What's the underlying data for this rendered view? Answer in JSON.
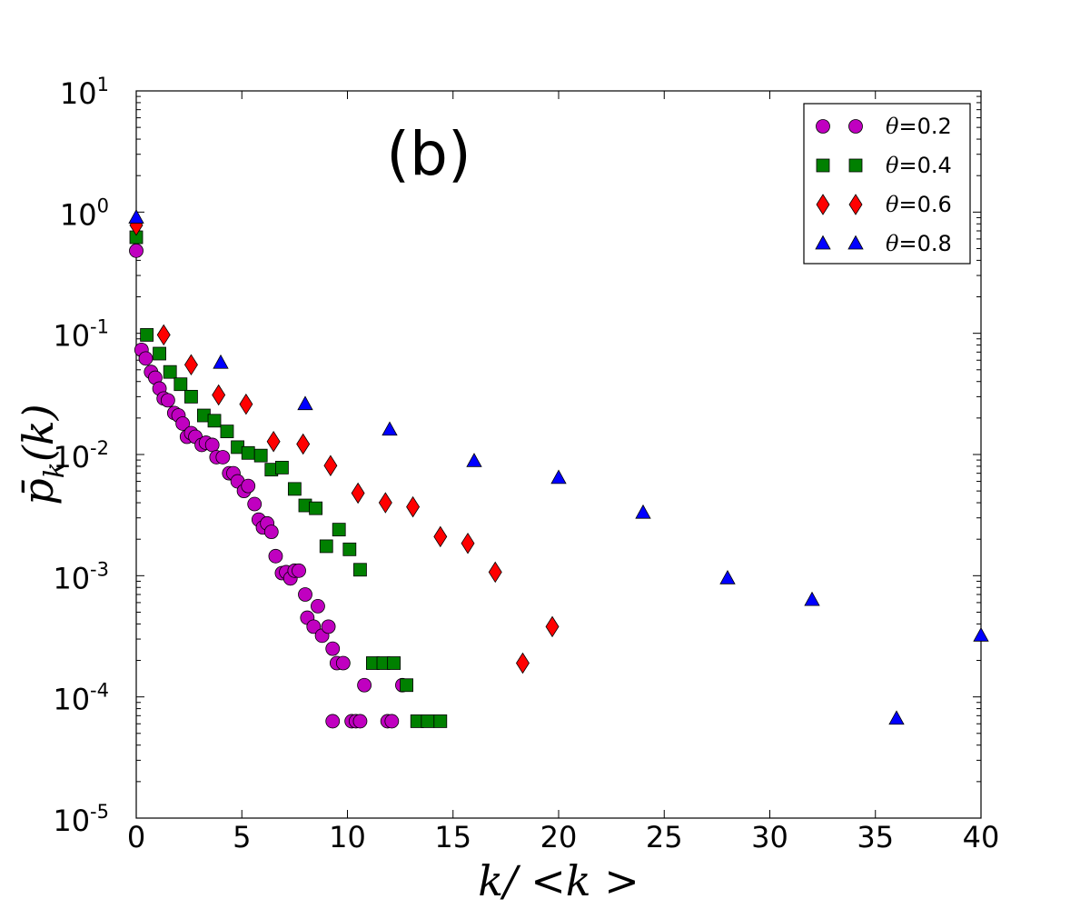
{
  "chart_data": {
    "type": "scatter",
    "title": "",
    "panel_label": "(b)",
    "xlabel": "k/ <k >",
    "ylabel": "p̄k(k)",
    "ylabel_parts": {
      "base": "p̄",
      "subscript": "k",
      "arg": "(k)"
    },
    "xlim": [
      0,
      40
    ],
    "ylim_log10": [
      -5,
      1
    ],
    "yscale": "log",
    "grid": false,
    "legend_position": "top-right",
    "x_ticks": [
      {
        "value": 0,
        "label": "0"
      },
      {
        "value": 5,
        "label": "5"
      },
      {
        "value": 10,
        "label": "10"
      },
      {
        "value": 15,
        "label": "15"
      },
      {
        "value": 20,
        "label": "20"
      },
      {
        "value": 25,
        "label": "25"
      },
      {
        "value": 30,
        "label": "30"
      },
      {
        "value": 35,
        "label": "35"
      },
      {
        "value": 40,
        "label": "40"
      }
    ],
    "y_ticks": [
      {
        "exp": 1,
        "base": "10",
        "sup": "1"
      },
      {
        "exp": 0,
        "base": "10",
        "sup": "0"
      },
      {
        "exp": -1,
        "base": "10",
        "sup": "-1"
      },
      {
        "exp": -2,
        "base": "10",
        "sup": "-2"
      },
      {
        "exp": -3,
        "base": "10",
        "sup": "-3"
      },
      {
        "exp": -4,
        "base": "10",
        "sup": "-4"
      },
      {
        "exp": -5,
        "base": "10",
        "sup": "-5"
      }
    ],
    "series": [
      {
        "name": "θ=0.2",
        "symbol": "θ",
        "value_text": "=0.2",
        "marker": "circle",
        "color": "#c000c0",
        "points": [
          [
            0,
            0.48
          ],
          [
            0.25,
            0.073
          ],
          [
            0.45,
            0.062
          ],
          [
            0.7,
            0.048
          ],
          [
            0.9,
            0.043
          ],
          [
            1.1,
            0.035
          ],
          [
            1.3,
            0.029
          ],
          [
            1.5,
            0.028
          ],
          [
            1.8,
            0.022
          ],
          [
            2.0,
            0.021
          ],
          [
            2.2,
            0.018
          ],
          [
            2.4,
            0.014
          ],
          [
            2.6,
            0.015
          ],
          [
            2.8,
            0.014
          ],
          [
            3.1,
            0.012
          ],
          [
            3.3,
            0.0125
          ],
          [
            3.6,
            0.012
          ],
          [
            3.8,
            0.0095
          ],
          [
            4.1,
            0.0095
          ],
          [
            4.4,
            0.007
          ],
          [
            4.6,
            0.007
          ],
          [
            4.8,
            0.006
          ],
          [
            5.1,
            0.005
          ],
          [
            5.3,
            0.0055
          ],
          [
            5.6,
            0.0039
          ],
          [
            5.8,
            0.0029
          ],
          [
            6.0,
            0.0025
          ],
          [
            6.2,
            0.0027
          ],
          [
            6.4,
            0.0023
          ],
          [
            6.6,
            0.00145
          ],
          [
            6.9,
            0.00105
          ],
          [
            7.1,
            0.00107
          ],
          [
            7.3,
            0.00095
          ],
          [
            7.5,
            0.0011
          ],
          [
            7.7,
            0.0011
          ],
          [
            8.0,
            0.0007
          ],
          [
            8.1,
            0.00045
          ],
          [
            8.4,
            0.00038
          ],
          [
            8.6,
            0.00056
          ],
          [
            8.8,
            0.00032
          ],
          [
            9.1,
            0.00038
          ],
          [
            9.3,
            0.00025
          ],
          [
            9.5,
            0.00019
          ],
          [
            9.8,
            0.00019
          ],
          [
            10.2,
            6.3e-05
          ],
          [
            10.4,
            6.3e-05
          ],
          [
            10.6,
            6.3e-05
          ],
          [
            10.8,
            0.000125
          ],
          [
            9.3,
            6.3e-05
          ],
          [
            11.9,
            6.3e-05
          ],
          [
            12.1,
            6.3e-05
          ],
          [
            12.6,
            0.000125
          ]
        ]
      },
      {
        "name": "θ=0.4",
        "symbol": "θ",
        "value_text": "=0.4",
        "marker": "square",
        "color": "#008000",
        "points": [
          [
            0,
            0.62
          ],
          [
            0.5,
            0.097
          ],
          [
            1.1,
            0.068
          ],
          [
            1.6,
            0.048
          ],
          [
            2.1,
            0.038
          ],
          [
            2.6,
            0.03
          ],
          [
            3.2,
            0.021
          ],
          [
            3.7,
            0.019
          ],
          [
            4.3,
            0.0155
          ],
          [
            4.8,
            0.0115
          ],
          [
            5.3,
            0.0103
          ],
          [
            5.9,
            0.0098
          ],
          [
            6.4,
            0.0075
          ],
          [
            6.9,
            0.0078
          ],
          [
            7.5,
            0.0052
          ],
          [
            8.0,
            0.0038
          ],
          [
            8.5,
            0.0036
          ],
          [
            9.0,
            0.00175
          ],
          [
            9.6,
            0.0024
          ],
          [
            10.1,
            0.00165
          ],
          [
            10.6,
            0.00112
          ],
          [
            11.2,
            0.00019
          ],
          [
            11.7,
            0.00019
          ],
          [
            12.2,
            0.00019
          ],
          [
            12.8,
            0.000125
          ],
          [
            13.3,
            6.3e-05
          ],
          [
            13.8,
            6.3e-05
          ],
          [
            14.4,
            6.3e-05
          ]
        ]
      },
      {
        "name": "θ=0.6",
        "symbol": "θ",
        "value_text": "=0.6",
        "marker": "diamond",
        "color": "#ff0000",
        "points": [
          [
            0,
            0.78
          ],
          [
            1.3,
            0.097
          ],
          [
            2.6,
            0.055
          ],
          [
            3.9,
            0.031
          ],
          [
            5.2,
            0.026
          ],
          [
            6.5,
            0.0128
          ],
          [
            7.9,
            0.0122
          ],
          [
            9.2,
            0.0081
          ],
          [
            10.5,
            0.0048
          ],
          [
            11.8,
            0.004
          ],
          [
            13.1,
            0.0037
          ],
          [
            14.4,
            0.0021
          ],
          [
            15.7,
            0.00185
          ],
          [
            17.0,
            0.00107
          ],
          [
            18.3,
            0.00019
          ],
          [
            19.7,
            0.00038
          ]
        ]
      },
      {
        "name": "θ=0.8",
        "symbol": "θ",
        "value_text": "=0.8",
        "marker": "triangle",
        "color": "#0000ff",
        "points": [
          [
            0,
            0.9
          ],
          [
            4.0,
            0.057
          ],
          [
            8.0,
            0.026
          ],
          [
            12.0,
            0.016
          ],
          [
            16.0,
            0.0088
          ],
          [
            20.0,
            0.0064
          ],
          [
            24.0,
            0.0033
          ],
          [
            28.0,
            0.00095
          ],
          [
            32.0,
            0.00063
          ],
          [
            36.0,
            6.6e-05
          ],
          [
            40.0,
            0.00032
          ]
        ]
      }
    ]
  }
}
